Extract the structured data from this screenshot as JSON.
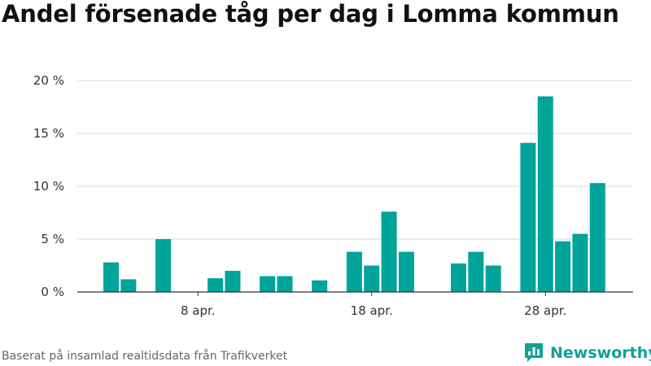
{
  "title": "Andel försenade tåg per dag i Lomma kommun",
  "footer": {
    "source": "Baserat på insamlad realtidsdata från Trafikverket",
    "brand": "Newsworthy"
  },
  "colors": {
    "bar": "#00a49a",
    "grid": "#d9d9d9",
    "axis": "#333333",
    "brand": "#11a196"
  },
  "chart_data": {
    "type": "bar",
    "title": "Andel försenade tåg per dag i Lomma kommun",
    "xlabel": "",
    "ylabel": "",
    "x_start_day": 3,
    "x_month_label": "apr.",
    "x_ticks": [
      {
        "day": 8,
        "label": "8 apr."
      },
      {
        "day": 18,
        "label": "18 apr."
      },
      {
        "day": 28,
        "label": "28 apr."
      }
    ],
    "y_ticks": [
      {
        "value": 0,
        "label": "0 %"
      },
      {
        "value": 5,
        "label": "5 %"
      },
      {
        "value": 10,
        "label": "10 %"
      },
      {
        "value": 15,
        "label": "15 %"
      },
      {
        "value": 20,
        "label": "20 %"
      }
    ],
    "ylim": [
      0,
      20
    ],
    "grid": true,
    "legend": "none",
    "values": [
      2.8,
      1.2,
      null,
      5.0,
      null,
      null,
      1.3,
      2.0,
      null,
      1.5,
      1.5,
      null,
      1.1,
      null,
      3.8,
      2.5,
      7.6,
      3.8,
      null,
      null,
      2.7,
      3.8,
      2.5,
      null,
      14.1,
      18.5,
      4.8,
      5.5,
      10.3
    ]
  }
}
